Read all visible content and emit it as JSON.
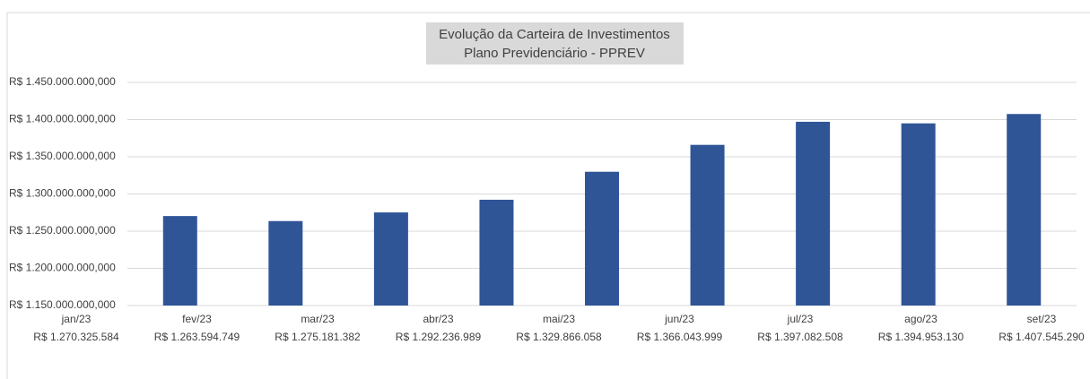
{
  "chart_data": {
    "type": "bar",
    "title": "Evolução da Carteira de Investimentos",
    "subtitle": "Plano Previdenciário - PPREV",
    "categories": [
      "jan/23",
      "fev/23",
      "mar/23",
      "abr/23",
      "mai/23",
      "jun/23",
      "jul/23",
      "ago/23",
      "set/23"
    ],
    "values": [
      1270325584,
      1263594749,
      1275181382,
      1292236989,
      1329866058,
      1366043999,
      1397082508,
      1394953130,
      1407545290
    ],
    "value_labels": [
      "R$ 1.270.325.584",
      "R$ 1.263.594.749",
      "R$ 1.275.181.382",
      "R$ 1.292.236.989",
      "R$ 1.329.866.058",
      "R$ 1.366.043.999",
      "R$ 1.397.082.508",
      "R$ 1.394.953.130",
      "R$ 1.407.545.290"
    ],
    "color": "#2f5597",
    "ylim": [
      1150000000,
      1450000000
    ],
    "yticks": [
      {
        "value": 1150000000,
        "label": "R$ 1.150.000.000,000"
      },
      {
        "value": 1200000000,
        "label": "R$ 1.200.000.000,000"
      },
      {
        "value": 1250000000,
        "label": "R$ 1.250.000.000,000"
      },
      {
        "value": 1300000000,
        "label": "R$ 1.300.000.000,000"
      },
      {
        "value": 1350000000,
        "label": "R$ 1.350.000.000,000"
      },
      {
        "value": 1400000000,
        "label": "R$ 1.400.000.000,000"
      },
      {
        "value": 1450000000,
        "label": "R$ 1.450.000.000,000"
      }
    ],
    "grid": true
  }
}
